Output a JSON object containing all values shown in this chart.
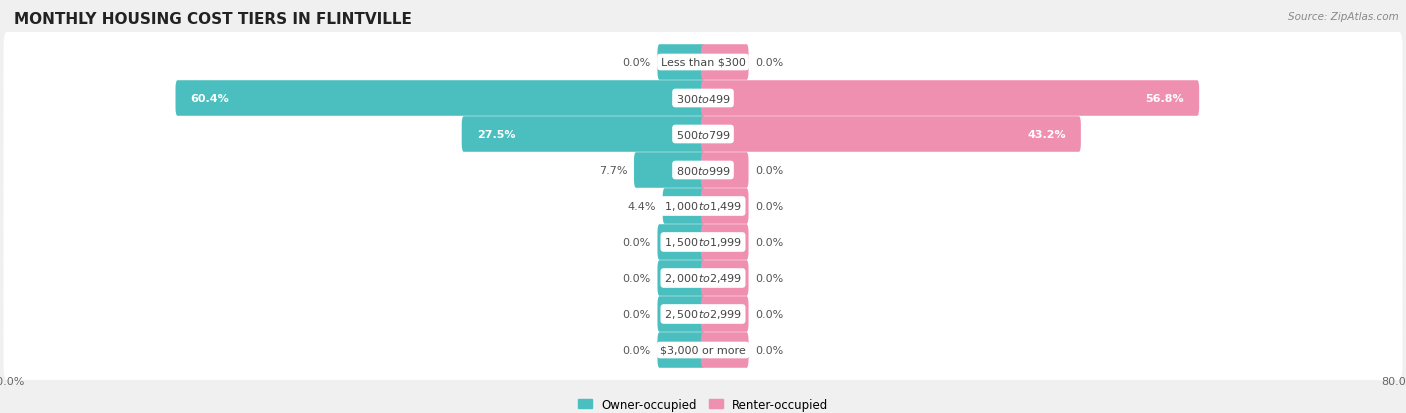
{
  "title": "MONTHLY HOUSING COST TIERS IN FLINTVILLE",
  "source": "Source: ZipAtlas.com",
  "categories": [
    "Less than $300",
    "$300 to $499",
    "$500 to $799",
    "$800 to $999",
    "$1,000 to $1,499",
    "$1,500 to $1,999",
    "$2,000 to $2,499",
    "$2,500 to $2,999",
    "$3,000 or more"
  ],
  "owner_values": [
    0.0,
    60.4,
    27.5,
    7.7,
    4.4,
    0.0,
    0.0,
    0.0,
    0.0
  ],
  "renter_values": [
    0.0,
    56.8,
    43.2,
    0.0,
    0.0,
    0.0,
    0.0,
    0.0,
    0.0
  ],
  "owner_color": "#4BBFBF",
  "renter_color": "#F090B0",
  "axis_max": 80.0,
  "bg_color": "#f0f0f0",
  "row_bg_color": "#ffffff",
  "stub_size": 5.0,
  "title_fontsize": 11,
  "cat_fontsize": 8,
  "val_fontsize": 8,
  "tick_fontsize": 8,
  "source_fontsize": 7.5
}
